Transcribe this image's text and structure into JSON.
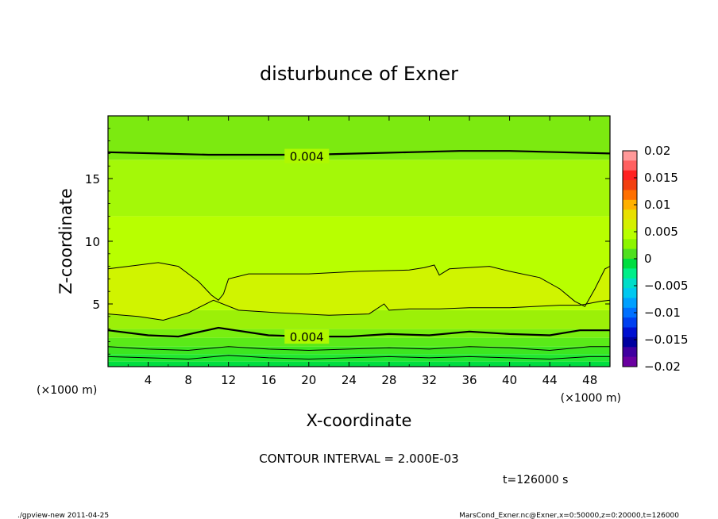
{
  "chart_data": {
    "type": "heatmap",
    "title": "disturbunce of Exner",
    "xlabel": "X-coordinate",
    "ylabel": "Z-coordinate",
    "x_unit_left": "(×1000 m)",
    "x_unit_right": "(×1000 m)",
    "xlim": [
      0,
      50
    ],
    "ylim": [
      0,
      20
    ],
    "x_ticks": [
      4,
      8,
      12,
      16,
      20,
      24,
      28,
      32,
      36,
      40,
      44,
      48
    ],
    "y_ticks": [
      5,
      10,
      15
    ],
    "colorbar": {
      "min": -0.02,
      "max": 0.02,
      "tick_values": [
        0.02,
        0.015,
        0.01,
        0.005,
        0,
        -0.005,
        -0.01,
        -0.015,
        -0.02
      ],
      "tick_labels": [
        "0.02",
        "0.015",
        "0.01",
        "0.005",
        "0",
        "−0.005",
        "−0.01",
        "−0.015",
        "−0.02"
      ],
      "colors": [
        "#ff9999",
        "#ff6060",
        "#ff2020",
        "#f24010",
        "#ff7000",
        "#ffb000",
        "#e8e000",
        "#d4f000",
        "#b8ff00",
        "#8cf500",
        "#50e020",
        "#00dd40",
        "#00ee88",
        "#00ddc8",
        "#00c8f0",
        "#00a0ff",
        "#0070ff",
        "#0040f0",
        "#0010d0",
        "#0000a0",
        "#4000a0",
        "#6a00a0"
      ]
    },
    "bands": [
      {
        "z": [
          0,
          0.4
        ],
        "value": 0.0015,
        "color": "#00dd40"
      },
      {
        "z": [
          0.4,
          1.0
        ],
        "value": 0.0022,
        "color": "#22e830"
      },
      {
        "z": [
          1.0,
          1.6
        ],
        "value": 0.0028,
        "color": "#3ce620"
      },
      {
        "z": [
          1.6,
          2.3
        ],
        "value": 0.0034,
        "color": "#5aea18"
      },
      {
        "z": [
          2.3,
          3.0
        ],
        "value": 0.0039,
        "color": "#78ee10"
      },
      {
        "z": [
          3.0,
          4.5
        ],
        "value": 0.0045,
        "color": "#9cf008"
      },
      {
        "z": [
          4.5,
          12.0
        ],
        "value": 0.0052,
        "color": "#b8ff00"
      },
      {
        "z": [
          12.0,
          16.5
        ],
        "value": 0.0046,
        "color": "#a4f808"
      },
      {
        "z": [
          16.5,
          20.0
        ],
        "value": 0.0038,
        "color": "#7cea10"
      }
    ],
    "contours": [
      {
        "level": 0.004,
        "label": "0.004",
        "label_x": 19.8,
        "label_z": 2.4,
        "thick": true,
        "points": [
          [
            0,
            2.9
          ],
          [
            4,
            2.5
          ],
          [
            7,
            2.4
          ],
          [
            11,
            3.1
          ],
          [
            16,
            2.5
          ],
          [
            20,
            2.4
          ],
          [
            24,
            2.4
          ],
          [
            28,
            2.6
          ],
          [
            32,
            2.5
          ],
          [
            36,
            2.8
          ],
          [
            40,
            2.6
          ],
          [
            44,
            2.5
          ],
          [
            47,
            2.9
          ],
          [
            50,
            2.9
          ]
        ]
      },
      {
        "level": 0.004,
        "label": "0.004",
        "label_x": 19.8,
        "label_z": 16.8,
        "thick": true,
        "points": [
          [
            0,
            17.1
          ],
          [
            5,
            17.0
          ],
          [
            10,
            16.9
          ],
          [
            15,
            16.9
          ],
          [
            20,
            16.9
          ],
          [
            25,
            17.0
          ],
          [
            30,
            17.1
          ],
          [
            35,
            17.2
          ],
          [
            40,
            17.2
          ],
          [
            45,
            17.1
          ],
          [
            50,
            17.0
          ]
        ]
      },
      {
        "level": 0.002,
        "label": "",
        "thick": false,
        "points": [
          [
            0,
            1.6
          ],
          [
            4,
            1.4
          ],
          [
            8,
            1.3
          ],
          [
            12,
            1.6
          ],
          [
            16,
            1.4
          ],
          [
            20,
            1.3
          ],
          [
            24,
            1.4
          ],
          [
            28,
            1.5
          ],
          [
            32,
            1.4
          ],
          [
            36,
            1.6
          ],
          [
            40,
            1.5
          ],
          [
            44,
            1.3
          ],
          [
            48,
            1.6
          ],
          [
            50,
            1.6
          ]
        ]
      },
      {
        "level": 0.0,
        "label": "",
        "thick": false,
        "points": [
          [
            0,
            0.8
          ],
          [
            4,
            0.7
          ],
          [
            8,
            0.6
          ],
          [
            12,
            0.9
          ],
          [
            16,
            0.7
          ],
          [
            20,
            0.6
          ],
          [
            24,
            0.7
          ],
          [
            28,
            0.8
          ],
          [
            32,
            0.7
          ],
          [
            36,
            0.8
          ],
          [
            40,
            0.7
          ],
          [
            44,
            0.6
          ],
          [
            48,
            0.8
          ],
          [
            50,
            0.8
          ]
        ]
      },
      {
        "level": 0.006,
        "label": "",
        "thick": false,
        "points": [
          [
            0,
            7.8
          ],
          [
            2,
            8.0
          ],
          [
            5,
            8.3
          ],
          [
            7,
            8.0
          ],
          [
            9,
            6.8
          ],
          [
            10.3,
            5.7
          ],
          [
            11,
            5.3
          ],
          [
            11.5,
            5.8
          ],
          [
            12,
            7.0
          ],
          [
            14,
            7.4
          ],
          [
            20,
            7.4
          ],
          [
            25,
            7.6
          ],
          [
            30,
            7.7
          ],
          [
            31.5,
            7.9
          ],
          [
            32.5,
            8.1
          ],
          [
            33,
            7.3
          ],
          [
            34,
            7.8
          ],
          [
            38,
            8.0
          ],
          [
            40,
            7.6
          ],
          [
            43,
            7.1
          ],
          [
            45,
            6.2
          ],
          [
            46.5,
            5.2
          ],
          [
            47.5,
            4.8
          ],
          [
            48.5,
            6.2
          ],
          [
            49.5,
            7.8
          ],
          [
            50,
            8.0
          ]
        ]
      },
      {
        "level": 0.006,
        "label": "",
        "thick": false,
        "points": [
          [
            0,
            4.2
          ],
          [
            3,
            4.0
          ],
          [
            5.5,
            3.7
          ],
          [
            8,
            4.3
          ],
          [
            10.5,
            5.3
          ],
          [
            13,
            4.5
          ],
          [
            17,
            4.3
          ],
          [
            22,
            4.1
          ],
          [
            26,
            4.2
          ],
          [
            27.5,
            5.0
          ],
          [
            28,
            4.5
          ],
          [
            30,
            4.6
          ],
          [
            33,
            4.6
          ],
          [
            36,
            4.7
          ],
          [
            40,
            4.7
          ],
          [
            45,
            4.9
          ],
          [
            47,
            4.9
          ],
          [
            49,
            5.2
          ],
          [
            50,
            5.3
          ]
        ]
      }
    ]
  },
  "annotation": {
    "contour_interval": "CONTOUR INTERVAL = 2.000E-03",
    "time": "t=126000 s"
  },
  "footer": {
    "left": "./gpview-new  2011-04-25",
    "right": "MarsCond_Exner.nc@Exner,x=0:50000,z=0:20000,t=126000"
  }
}
